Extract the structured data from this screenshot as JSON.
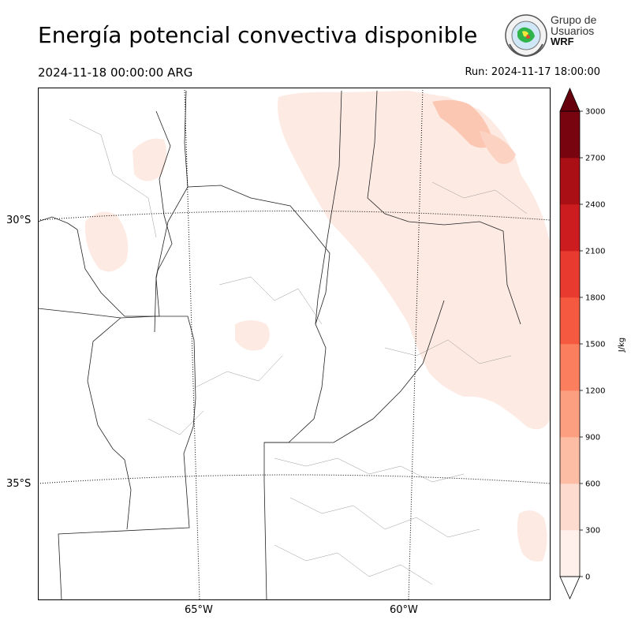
{
  "title": "Energía potencial convectiva disponible",
  "valid_time": "2024-11-18 00:00:00 ARG",
  "run_time": "Run: 2024-11-17 18:00:00",
  "logo": {
    "line1": "Grupo de",
    "line2": "Usuarios",
    "line3": "WRF"
  },
  "map": {
    "lat_labels": [
      "30°S",
      "35°S"
    ],
    "lon_labels": [
      "65°W",
      "60°W"
    ]
  },
  "colorbar": {
    "label": "J/kg",
    "ticks": [
      "0",
      "300",
      "600",
      "900",
      "1200",
      "1500",
      "1800",
      "2100",
      "2400",
      "2700",
      "3000"
    ],
    "colors": [
      "#fff0eb",
      "#fddccf",
      "#fcbda4",
      "#fc9f81",
      "#fb7f5f",
      "#f55a41",
      "#e83a2e",
      "#cc1c1f",
      "#a90f15",
      "#77040f"
    ],
    "under_color": "#ffffff",
    "over_color": "#67000d"
  }
}
